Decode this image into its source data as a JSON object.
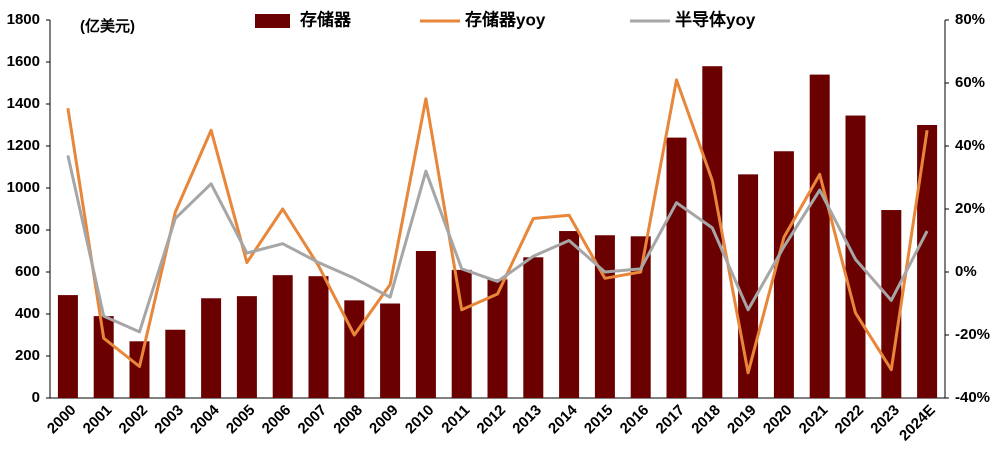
{
  "chart_data": {
    "type": "bar",
    "annotation": "(亿美元)",
    "categories": [
      "2000",
      "2001",
      "2002",
      "2003",
      "2004",
      "2005",
      "2006",
      "2007",
      "2008",
      "2009",
      "2010",
      "2011",
      "2012",
      "2013",
      "2014",
      "2015",
      "2016",
      "2017",
      "2018",
      "2019",
      "2020",
      "2021",
      "2022",
      "2023",
      "2024E"
    ],
    "series": [
      {
        "name": "存储器",
        "type": "bar",
        "color": "#6b0000",
        "values": [
          490,
          390,
          270,
          325,
          475,
          485,
          585,
          580,
          465,
          450,
          700,
          610,
          565,
          670,
          795,
          775,
          770,
          1240,
          1580,
          1065,
          1175,
          1540,
          1345,
          895,
          1300
        ]
      },
      {
        "name": "存储器yoy",
        "type": "line",
        "axis": "y2",
        "color": "#e8863a",
        "values": [
          52,
          -21,
          -30,
          19,
          45,
          3,
          20,
          2,
          -20,
          -4,
          55,
          -12,
          -7,
          17,
          18,
          -2,
          0,
          61,
          29,
          -32,
          11,
          31,
          -13,
          -31,
          45
        ]
      },
      {
        "name": "半导体yoy",
        "type": "line",
        "axis": "y2",
        "color": "#a6a6a6",
        "values": [
          37,
          -14,
          -19,
          17,
          28,
          6,
          9,
          3,
          -2,
          -8,
          32,
          1,
          -3,
          5,
          10,
          0,
          1,
          22,
          14,
          -12,
          8,
          26,
          4,
          -9,
          13
        ]
      }
    ],
    "ylim": [
      0,
      1800
    ],
    "yticks": [
      0,
      200,
      400,
      600,
      800,
      1000,
      1200,
      1400,
      1600,
      1800
    ],
    "y2lim": [
      -40,
      80
    ],
    "y2ticks": [
      {
        "value": -40,
        "label": "-40%"
      },
      {
        "value": -20,
        "label": "-20%"
      },
      {
        "value": 0,
        "label": "0%"
      },
      {
        "value": 20,
        "label": "20%"
      },
      {
        "value": 40,
        "label": "40%"
      },
      {
        "value": 60,
        "label": "60%"
      },
      {
        "value": 80,
        "label": "80%"
      }
    ],
    "grid": false
  }
}
